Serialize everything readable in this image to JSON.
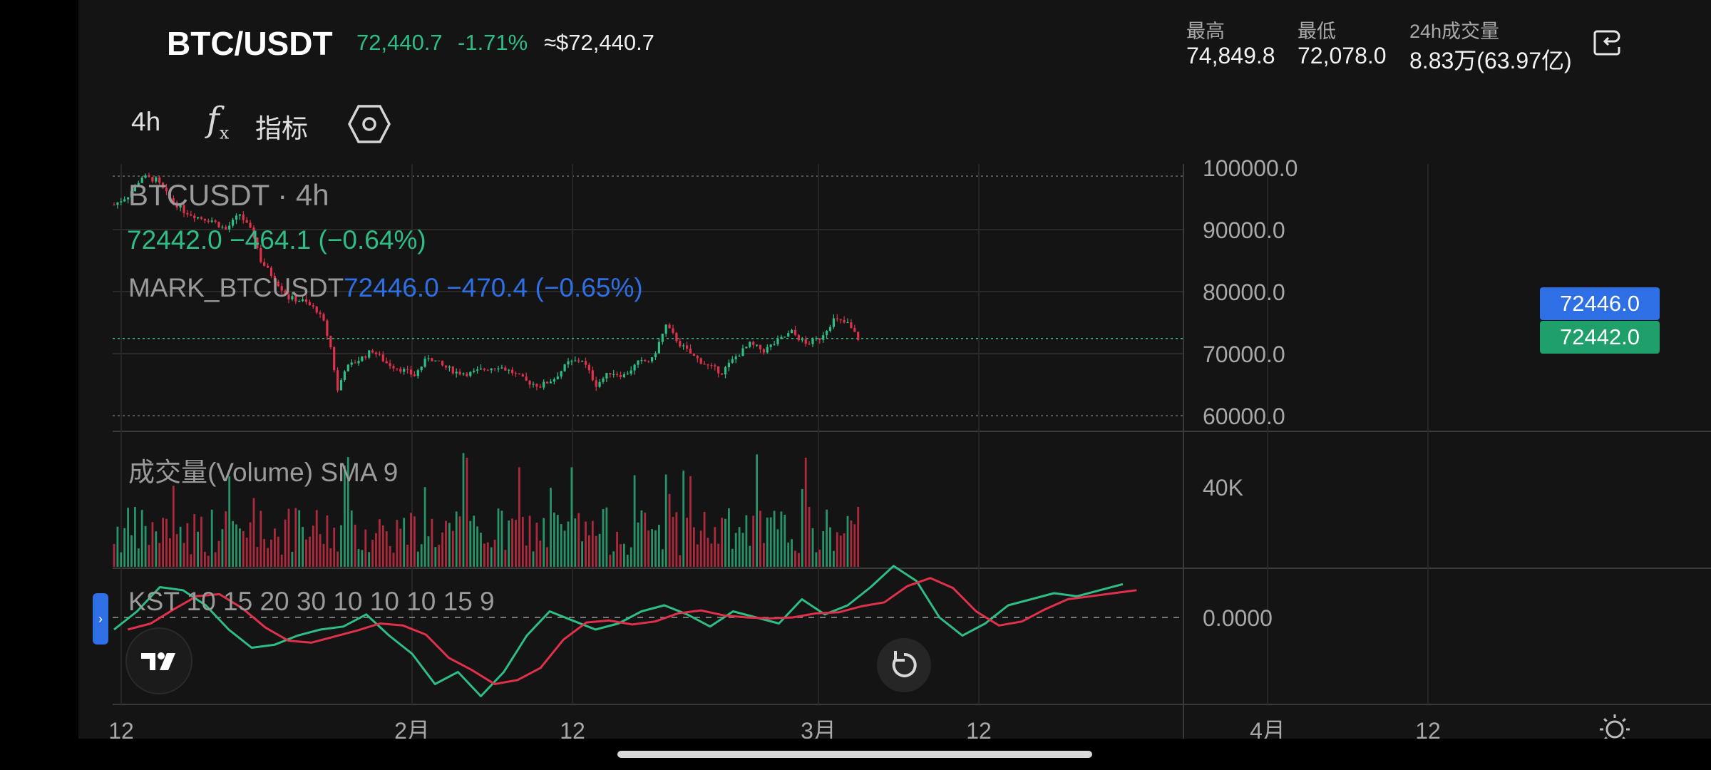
{
  "header": {
    "symbol": "BTC/USDT",
    "last_price": "72,440.7",
    "change_pct": "-1.71%",
    "usd_price": "≈$72,440.7",
    "stats": [
      {
        "label": "最高",
        "value": "74,849.8"
      },
      {
        "label": "最低",
        "value": "72,078.0"
      },
      {
        "label": "24h成交量",
        "value": "8.83万(63.97亿)"
      }
    ],
    "share_icon": "share-icon"
  },
  "toolbar": {
    "interval": "4h",
    "fx_label": "f",
    "fx_sub": "x",
    "indicators_label": "指标",
    "settings_icon": "hexagon-settings-icon"
  },
  "legend": {
    "title": "BTCUSDT · 4h",
    "last": "72442.0  −464.1 (−0.64%)",
    "mark_name": "MARK_BTCUSDT",
    "mark_values": "72446.0  −470.4 (−0.65%)",
    "volume": "成交量(Volume) SMA 9",
    "kst": "KST 10 15 20 30 10 10 10 15 9"
  },
  "price_tags": {
    "mark": "72446.0",
    "last": "72442.0"
  },
  "colors": {
    "up": "#2ebd85",
    "down": "#e0314b",
    "mark": "#2e6fe6",
    "kst_line": "#2ebd85",
    "kst_signal": "#e0314b"
  },
  "chart_data": {
    "type": "candlestick",
    "interval": "4h",
    "price_axis": {
      "ticks": [
        "100000.0",
        "90000.0",
        "80000.0",
        "70000.0",
        "60000.0"
      ],
      "range": [
        60000,
        100000
      ]
    },
    "volume_axis": {
      "ticks": [
        "40K"
      ]
    },
    "kst_axis": {
      "ticks": [
        "0.0000"
      ]
    },
    "time_axis": {
      "ticks": [
        "12",
        "2月",
        "12",
        "3月",
        "12",
        "4月",
        "12"
      ]
    },
    "price_path": [
      [
        0,
        94000
      ],
      [
        4,
        95500
      ],
      [
        8,
        98500
      ],
      [
        12,
        98000
      ],
      [
        16,
        95000
      ],
      [
        20,
        93000
      ],
      [
        24,
        92000
      ],
      [
        28,
        91500
      ],
      [
        32,
        90000
      ],
      [
        36,
        92500
      ],
      [
        40,
        89000
      ],
      [
        42,
        85000
      ],
      [
        46,
        82000
      ],
      [
        50,
        79000
      ],
      [
        54,
        78500
      ],
      [
        58,
        77000
      ],
      [
        60,
        75000
      ],
      [
        62,
        71000
      ],
      [
        64,
        64000
      ],
      [
        66,
        67500
      ],
      [
        70,
        69000
      ],
      [
        74,
        70500
      ],
      [
        78,
        68500
      ],
      [
        82,
        67500
      ],
      [
        86,
        66500
      ],
      [
        90,
        69500
      ],
      [
        94,
        68000
      ],
      [
        98,
        67000
      ],
      [
        102,
        66800
      ],
      [
        106,
        67500
      ],
      [
        110,
        68000
      ],
      [
        114,
        67000
      ],
      [
        118,
        65500
      ],
      [
        122,
        64800
      ],
      [
        126,
        66000
      ],
      [
        130,
        68500
      ],
      [
        134,
        69000
      ],
      [
        138,
        65000
      ],
      [
        142,
        67000
      ],
      [
        146,
        66500
      ],
      [
        150,
        68500
      ],
      [
        154,
        69000
      ],
      [
        158,
        74500
      ],
      [
        162,
        71500
      ],
      [
        166,
        69500
      ],
      [
        170,
        68000
      ],
      [
        174,
        67000
      ],
      [
        178,
        69500
      ],
      [
        182,
        71500
      ],
      [
        186,
        70500
      ],
      [
        190,
        72000
      ],
      [
        194,
        73500
      ],
      [
        198,
        71500
      ],
      [
        202,
        72500
      ],
      [
        206,
        75500
      ],
      [
        210,
        74800
      ],
      [
        213,
        72442
      ]
    ],
    "kst": [
      -0.2,
      0.1,
      0.5,
      0.45,
      0.2,
      -0.2,
      -0.5,
      -0.45,
      -0.3,
      -0.2,
      -0.15,
      0.05,
      -0.3,
      -0.6,
      -1.1,
      -0.9,
      -1.3,
      -0.9,
      -0.3,
      0.1,
      -0.05,
      -0.2,
      -0.1,
      0.1,
      0.2,
      0.05,
      -0.15,
      0.1,
      0.0,
      -0.1,
      0.3,
      0.05,
      0.2,
      0.5,
      0.85,
      0.6,
      0.0,
      -0.3,
      -0.1,
      0.2,
      0.3,
      0.4,
      0.35,
      0.45,
      0.55
    ]
  }
}
